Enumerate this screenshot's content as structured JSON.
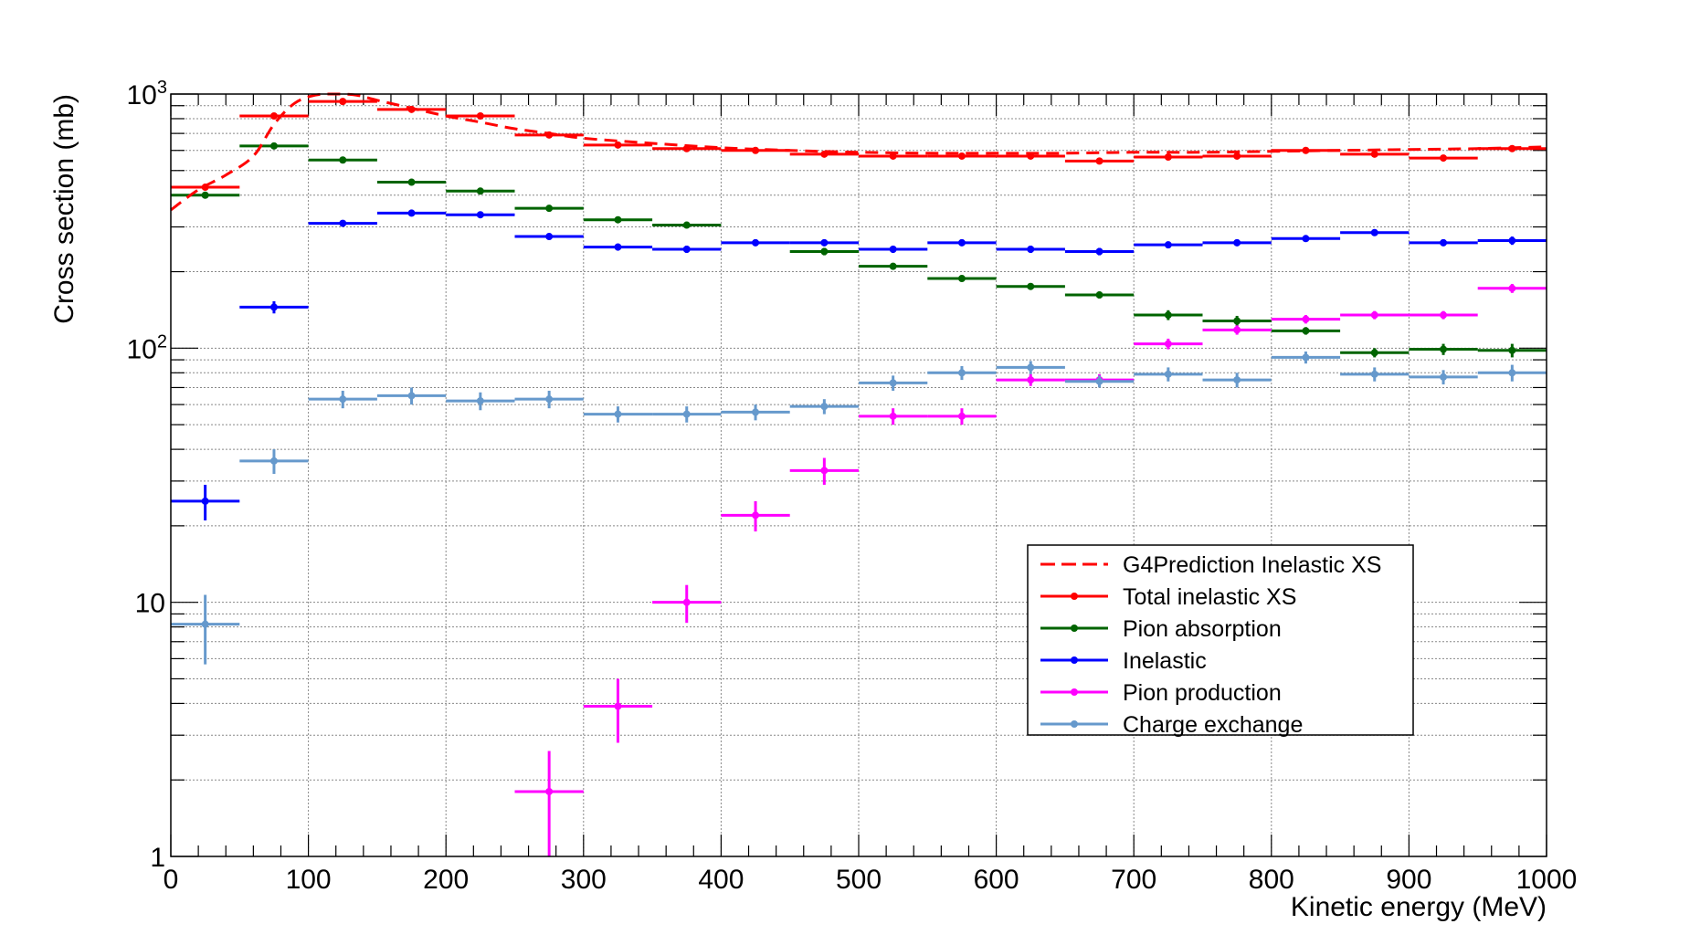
{
  "chart_data": {
    "type": "scatter",
    "xlabel": "Kinetic energy (MeV)",
    "ylabel": "Cross section (mb)",
    "xlim": [
      0,
      1000
    ],
    "ylim": [
      1,
      1000
    ],
    "y_scale": "log",
    "grid": true,
    "legend_position": "lower-right",
    "x_tick_labels": [
      "0",
      "100",
      "200",
      "300",
      "400",
      "500",
      "600",
      "700",
      "800",
      "900",
      "1000"
    ],
    "y_tick_labels": [
      {
        "value": 1,
        "base": "1",
        "exp": ""
      },
      {
        "value": 10,
        "base": "10",
        "exp": ""
      },
      {
        "value": 100,
        "base": "10",
        "exp": "2"
      },
      {
        "value": 1000,
        "base": "10",
        "exp": "3"
      }
    ],
    "bin_edges": [
      0,
      50,
      100,
      150,
      200,
      250,
      300,
      350,
      400,
      450,
      500,
      550,
      600,
      650,
      700,
      750,
      800,
      850,
      900,
      950,
      1000
    ],
    "series": [
      {
        "name": "Total inelastic XS",
        "color": "#ff0000",
        "values": [
          430,
          820,
          935,
          870,
          820,
          690,
          630,
          610,
          600,
          580,
          570,
          570,
          570,
          545,
          565,
          570,
          600,
          580,
          560,
          610
        ],
        "errors": [
          10,
          10,
          10,
          10,
          10,
          10,
          10,
          10,
          10,
          10,
          10,
          10,
          10,
          10,
          10,
          10,
          10,
          10,
          10,
          10
        ]
      },
      {
        "name": "Pion absorption",
        "color": "#006400",
        "values": [
          400,
          625,
          550,
          450,
          415,
          355,
          320,
          305,
          0,
          240,
          210,
          188,
          175,
          162,
          135,
          128,
          117,
          96,
          99,
          98
        ],
        "errors": [
          8,
          8,
          8,
          8,
          8,
          8,
          8,
          8,
          0,
          8,
          6,
          5,
          5,
          5,
          6,
          6,
          4,
          4,
          5,
          6
        ]
      },
      {
        "name": "Inelastic",
        "color": "#0000ff",
        "values": [
          25,
          145,
          310,
          340,
          335,
          275,
          250,
          245,
          260,
          260,
          245,
          260,
          245,
          240,
          255,
          260,
          270,
          285,
          260,
          265
        ],
        "errors": [
          4,
          8,
          8,
          8,
          8,
          8,
          8,
          8,
          8,
          8,
          8,
          8,
          8,
          8,
          8,
          8,
          8,
          8,
          8,
          10
        ]
      },
      {
        "name": "Pion production",
        "color": "#ff00ff",
        "values": [
          0,
          0,
          0,
          0,
          0,
          1.8,
          3.9,
          10,
          22,
          33,
          54,
          54,
          75,
          75,
          104,
          118,
          130,
          135,
          135,
          172
        ],
        "errors": [
          0,
          0,
          0,
          0,
          0,
          0.8,
          1.1,
          1.7,
          3,
          4,
          4,
          4,
          4,
          4,
          5,
          5,
          5,
          5,
          5,
          7
        ]
      },
      {
        "name": "Charge exchange",
        "color": "#6699cc",
        "values": [
          8.2,
          36,
          63,
          65,
          62,
          63,
          55,
          55,
          56,
          59,
          73,
          80,
          84,
          74,
          79,
          75,
          92,
          79,
          77,
          80
        ],
        "errors": [
          2.5,
          4,
          5,
          5,
          5,
          5,
          4,
          4,
          4,
          4,
          5,
          5,
          5,
          4,
          5,
          5,
          5,
          5,
          5,
          6
        ]
      }
    ],
    "prediction": {
      "name": "G4Prediction Inelastic XS",
      "color": "#ff0000",
      "style": "dashed",
      "x": [
        0,
        20,
        40,
        60,
        75,
        90,
        105,
        120,
        135,
        150,
        175,
        200,
        225,
        250,
        275,
        300,
        350,
        400,
        450,
        500,
        550,
        600,
        650,
        700,
        750,
        800,
        850,
        900,
        950,
        1000
      ],
      "y": [
        350,
        420,
        480,
        570,
        760,
        920,
        990,
        1000,
        990,
        945,
        880,
        820,
        775,
        730,
        700,
        670,
        640,
        615,
        600,
        590,
        585,
        585,
        585,
        590,
        590,
        595,
        600,
        605,
        610,
        620
      ]
    },
    "legend": [
      "G4Prediction Inelastic XS",
      "Total inelastic XS",
      "Pion absorption",
      "Inelastic",
      "Pion production",
      "Charge exchange"
    ]
  }
}
